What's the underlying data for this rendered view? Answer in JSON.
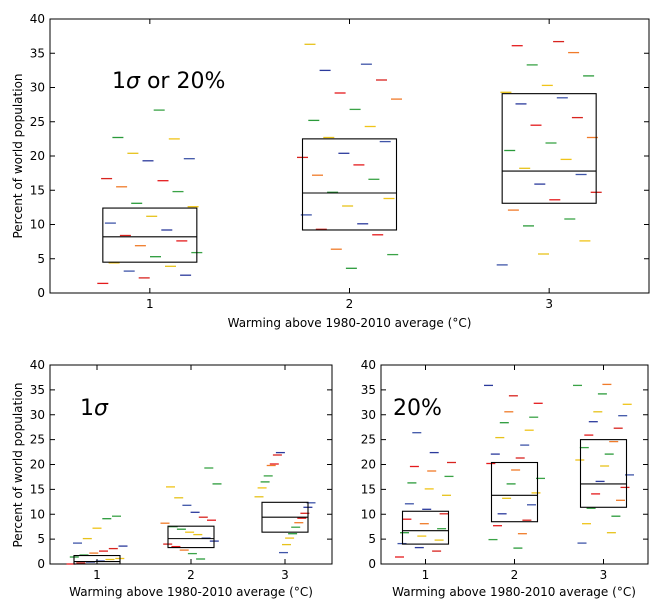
{
  "chart_data": [
    {
      "type": "scatter",
      "id": "top",
      "annotation_prefix": "1",
      "annotation_sigma": "σ",
      "annotation_suffix": " or 20%",
      "xlabel_prefix": "Warming above 1980-2010 average (",
      "xlabel_unit": "°C",
      "xlabel_suffix": ")",
      "ylabel": "Percent of world population",
      "xlim": [
        0.5,
        3.5
      ],
      "ylim": [
        0,
        40
      ],
      "xticks": [
        "1",
        "2",
        "3"
      ],
      "yticks": [
        "0",
        "5",
        "10",
        "15",
        "20",
        "25",
        "30",
        "35",
        "40"
      ],
      "grid": false,
      "boxes": [
        {
          "x": 1,
          "q1": 4.5,
          "median": 8.2,
          "q3": 12.4
        },
        {
          "x": 2,
          "q1": 9.2,
          "median": 14.6,
          "q3": 22.5
        },
        {
          "x": 3,
          "q1": 13.1,
          "median": 17.8,
          "q3": 29.1
        }
      ],
      "points": [
        {
          "x": 1,
          "values": [
            1.4,
            2.2,
            2.6,
            3.2,
            3.9,
            4.4,
            5.3,
            5.9,
            6.9,
            7.6,
            8.4,
            9.2,
            10.2,
            11.2,
            12.6,
            13.1,
            14.8,
            15.5,
            16.4,
            16.7,
            19.3,
            19.6,
            20.4,
            22.5,
            22.7,
            26.7
          ]
        },
        {
          "x": 2,
          "values": [
            3.6,
            5.6,
            6.4,
            8.5,
            9.3,
            10.1,
            11.4,
            12.7,
            13.8,
            14.7,
            16.6,
            17.2,
            18.7,
            19.8,
            20.4,
            22.1,
            22.7,
            24.3,
            25.2,
            26.8,
            28.3,
            29.2,
            31.1,
            32.5,
            33.4,
            36.3
          ]
        },
        {
          "x": 3,
          "values": [
            4.1,
            5.7,
            7.6,
            9.8,
            10.8,
            12.1,
            13.6,
            14.7,
            15.9,
            17.3,
            18.2,
            19.5,
            20.8,
            21.9,
            22.7,
            24.5,
            25.6,
            27.6,
            28.5,
            29.3,
            30.3,
            31.7,
            33.3,
            35.1,
            36.1,
            36.7
          ]
        }
      ]
    },
    {
      "type": "scatter",
      "id": "bottom-left",
      "annotation_prefix": "1",
      "annotation_sigma": "σ",
      "annotation_suffix": "",
      "xlabel_prefix": "Warming above 1980-2010 average (",
      "xlabel_unit": "°C",
      "xlabel_suffix": ")",
      "ylabel": "Percent of world population",
      "xlim": [
        0.5,
        3.5
      ],
      "ylim": [
        0,
        40
      ],
      "xticks": [
        "1",
        "2",
        "3"
      ],
      "yticks": [
        "0",
        "5",
        "10",
        "15",
        "20",
        "25",
        "30",
        "35",
        "40"
      ],
      "grid": false,
      "boxes": [
        {
          "x": 1,
          "q1": 0.0,
          "median": 0.5,
          "q3": 1.7
        },
        {
          "x": 2,
          "q1": 3.3,
          "median": 5.1,
          "q3": 7.6
        },
        {
          "x": 3,
          "q1": 6.4,
          "median": 9.4,
          "q3": 12.4
        }
      ],
      "points": [
        {
          "x": 1,
          "values": [
            0.0,
            0.2,
            0.4,
            0.6,
            0.9,
            1.1,
            1.4,
            1.8,
            2.2,
            2.6,
            3.1,
            3.6,
            4.2,
            5.1,
            7.2,
            9.1,
            9.6
          ]
        },
        {
          "x": 2,
          "values": [
            1.0,
            2.1,
            2.8,
            3.5,
            4.0,
            4.6,
            5.2,
            5.9,
            6.4,
            7.0,
            7.5,
            8.2,
            8.8,
            9.4,
            10.4,
            11.8,
            13.3,
            15.5,
            16.1,
            19.3
          ]
        },
        {
          "x": 3,
          "values": [
            2.3,
            3.9,
            5.2,
            6.1,
            7.4,
            8.3,
            9.2,
            10.2,
            11.4,
            12.3,
            13.5,
            15.3,
            16.5,
            17.7,
            19.8,
            20.1,
            21.9,
            22.4
          ]
        }
      ]
    },
    {
      "type": "scatter",
      "id": "bottom-right",
      "annotation_prefix": "20%",
      "annotation_sigma": "",
      "annotation_suffix": "",
      "xlabel_prefix": "Warming above 1980-2010 average (",
      "xlabel_unit": "°C",
      "xlabel_suffix": ")",
      "ylabel": "",
      "xlim": [
        0.5,
        3.5
      ],
      "ylim": [
        0,
        40
      ],
      "xticks": [
        "1",
        "2",
        "3"
      ],
      "yticks": [
        "0",
        "5",
        "10",
        "15",
        "20",
        "25",
        "30",
        "35",
        "40"
      ],
      "grid": false,
      "boxes": [
        {
          "x": 1,
          "q1": 4.0,
          "median": 6.7,
          "q3": 10.6
        },
        {
          "x": 2,
          "q1": 8.5,
          "median": 13.8,
          "q3": 20.4
        },
        {
          "x": 3,
          "q1": 11.4,
          "median": 16.1,
          "q3": 25.0
        }
      ],
      "points": [
        {
          "x": 1,
          "values": [
            1.4,
            2.6,
            3.3,
            4.1,
            4.8,
            5.6,
            6.3,
            7.1,
            8.1,
            9.0,
            10.1,
            11.0,
            12.1,
            13.8,
            15.1,
            16.3,
            17.6,
            18.7,
            19.6,
            20.4,
            22.4,
            26.4
          ]
        },
        {
          "x": 2,
          "values": [
            3.2,
            4.9,
            6.1,
            7.7,
            8.8,
            10.1,
            11.9,
            13.2,
            14.3,
            16.1,
            17.2,
            18.9,
            20.2,
            21.3,
            22.1,
            23.9,
            25.4,
            26.9,
            28.4,
            29.5,
            30.6,
            32.3,
            33.8,
            35.9
          ]
        },
        {
          "x": 3,
          "values": [
            4.2,
            6.3,
            8.1,
            9.6,
            11.2,
            12.8,
            14.1,
            15.4,
            16.6,
            17.9,
            19.7,
            20.9,
            22.1,
            23.4,
            24.6,
            25.9,
            27.3,
            28.6,
            29.8,
            30.6,
            32.1,
            34.2,
            35.9,
            36.1
          ]
        }
      ]
    }
  ],
  "dash_colors": [
    "#e41a1c",
    "#2b3a9c",
    "#e7c21b",
    "#2a9a3a",
    "#f07b2a",
    "#d8241f",
    "#3f55a8",
    "#f0c419",
    "#3aa346"
  ]
}
